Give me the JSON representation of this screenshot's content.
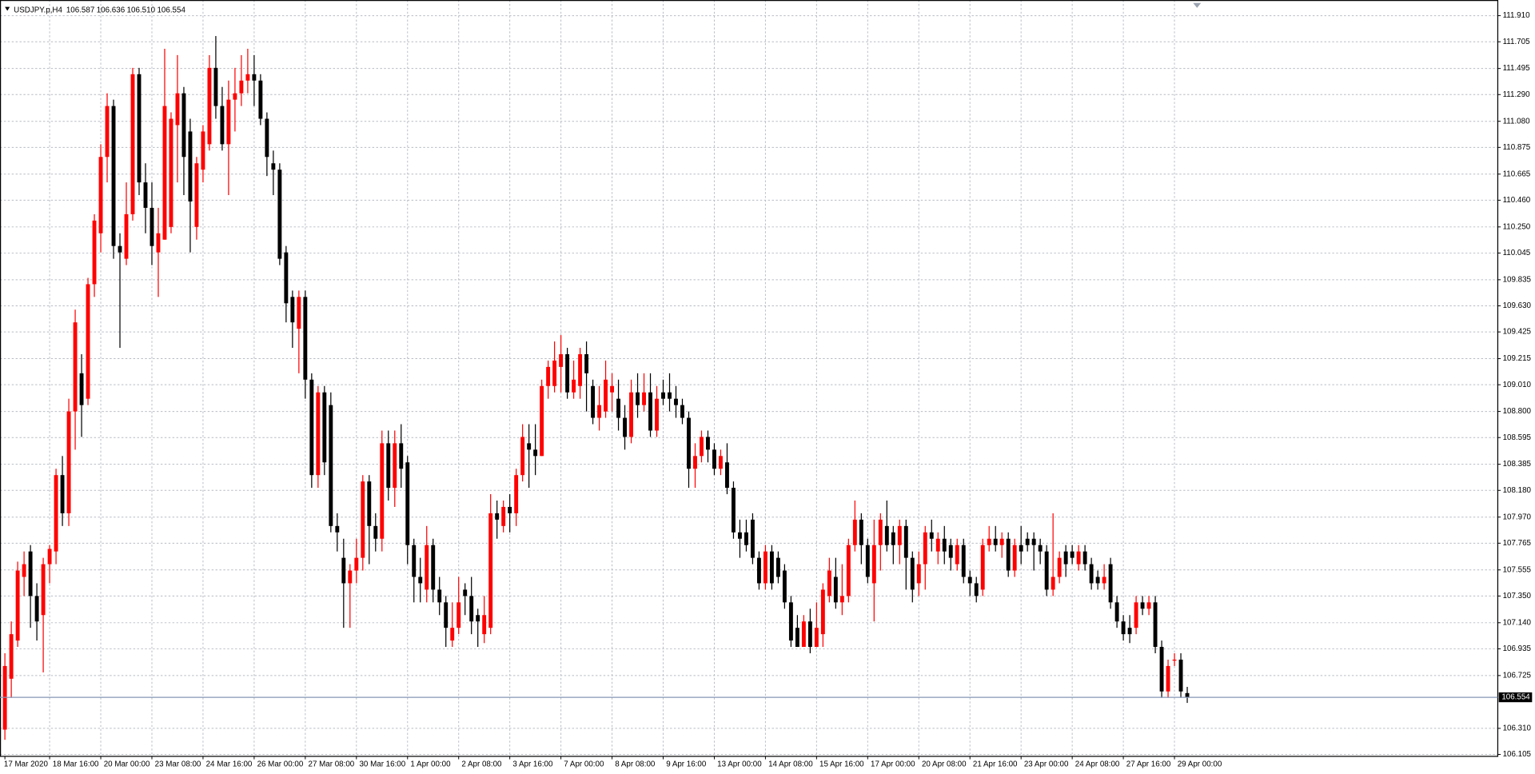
{
  "chart_data": {
    "type": "candlestick",
    "title": "USDJPY.p,H4",
    "ohlc_labels": [
      "106.587",
      "106.636",
      "106.510",
      "106.554"
    ],
    "up_color": "#ff0000",
    "down_color": "#000000",
    "grid": true,
    "last_price": {
      "value": 106.554,
      "label": "106.554"
    },
    "ylim": [
      106.09,
      112.033
    ],
    "yticks": [
      {
        "value": 111.91,
        "label": "111.910"
      },
      111.705,
      111.495,
      {
        "value": 111.29,
        "label": "111.290"
      },
      {
        "value": 111.08,
        "label": "111.080"
      },
      110.875,
      110.665,
      {
        "value": 110.46,
        "label": "110.460"
      },
      {
        "value": 110.25,
        "label": "110.250"
      },
      110.045,
      109.835,
      {
        "value": 109.63,
        "label": "109.630"
      },
      109.425,
      109.215,
      {
        "value": 109.01,
        "label": "109.010"
      },
      {
        "value": 108.8,
        "label": "108.800"
      },
      108.595,
      108.385,
      {
        "value": 108.18,
        "label": "108.180"
      },
      {
        "value": 107.97,
        "label": "107.970"
      },
      107.765,
      107.555,
      {
        "value": 107.35,
        "label": "107.350"
      },
      {
        "value": 107.14,
        "label": "107.140"
      },
      106.935,
      106.725,
      {
        "value": 106.31,
        "label": "106.310"
      },
      106.105
    ],
    "categories": [
      "17 Mar 2020",
      null,
      null,
      null,
      null,
      null,
      null,
      "18 Mar 16:00",
      null,
      null,
      null,
      null,
      null,
      null,
      null,
      "20 Mar 00:00",
      null,
      null,
      null,
      null,
      null,
      null,
      null,
      "23 Mar 08:00",
      null,
      null,
      null,
      null,
      null,
      null,
      null,
      "24 Mar 16:00",
      null,
      null,
      null,
      null,
      null,
      null,
      null,
      "26 Mar 00:00",
      null,
      null,
      null,
      null,
      null,
      null,
      null,
      "27 Mar 08:00",
      null,
      null,
      null,
      null,
      null,
      null,
      null,
      "30 Mar 16:00",
      null,
      null,
      null,
      null,
      null,
      null,
      null,
      "1 Apr 00:00",
      null,
      null,
      null,
      null,
      null,
      null,
      null,
      "2 Apr 08:00",
      null,
      null,
      null,
      null,
      null,
      null,
      null,
      "3 Apr 16:00",
      null,
      null,
      null,
      null,
      null,
      null,
      null,
      "7 Apr 00:00",
      null,
      null,
      null,
      null,
      null,
      null,
      null,
      "8 Apr 08:00",
      null,
      null,
      null,
      null,
      null,
      null,
      null,
      "9 Apr 16:00",
      null,
      null,
      null,
      null,
      null,
      null,
      null,
      "13 Apr 00:00",
      null,
      null,
      null,
      null,
      null,
      null,
      null,
      "14 Apr 08:00",
      null,
      null,
      null,
      null,
      null,
      null,
      null,
      "15 Apr 16:00",
      null,
      null,
      null,
      null,
      null,
      null,
      null,
      "17 Apr 00:00",
      null,
      null,
      null,
      null,
      null,
      null,
      null,
      "20 Apr 08:00",
      null,
      null,
      null,
      null,
      null,
      null,
      null,
      "21 Apr 16:00",
      null,
      null,
      null,
      null,
      null,
      null,
      null,
      "23 Apr 00:00",
      null,
      null,
      null,
      null,
      null,
      null,
      null,
      "24 Apr 08:00",
      null,
      null,
      null,
      null,
      null,
      null,
      null,
      "27 Apr 16:00",
      null,
      null,
      null,
      null,
      null,
      null,
      null,
      "29 Apr 00:00",
      null,
      null
    ],
    "ohlc": [
      [
        106.3,
        106.9,
        106.22,
        106.8
      ],
      [
        106.7,
        107.15,
        106.55,
        107.05
      ],
      [
        107.0,
        107.62,
        106.95,
        107.55
      ],
      [
        107.5,
        107.7,
        107.35,
        107.6
      ],
      [
        107.7,
        107.75,
        107.1,
        107.35
      ],
      [
        107.35,
        107.45,
        107.0,
        107.15
      ],
      [
        107.2,
        107.65,
        106.75,
        107.6
      ],
      [
        107.6,
        107.75,
        107.45,
        107.72
      ],
      [
        107.7,
        108.35,
        107.6,
        108.3
      ],
      [
        108.3,
        108.45,
        107.9,
        108.0
      ],
      [
        108.0,
        108.9,
        107.9,
        108.8
      ],
      [
        108.8,
        109.6,
        108.5,
        109.5
      ],
      [
        109.1,
        109.25,
        108.6,
        108.85
      ],
      [
        108.9,
        109.85,
        108.85,
        109.8
      ],
      [
        109.8,
        110.35,
        109.7,
        110.3
      ],
      [
        110.2,
        110.9,
        110.05,
        110.8
      ],
      [
        110.8,
        111.3,
        110.6,
        111.2
      ],
      [
        111.2,
        111.25,
        110.0,
        110.1
      ],
      [
        110.1,
        110.2,
        109.3,
        110.05
      ],
      [
        110.0,
        110.6,
        109.95,
        110.35
      ],
      [
        110.35,
        111.5,
        110.3,
        111.45
      ],
      [
        111.45,
        111.5,
        110.5,
        110.6
      ],
      [
        110.6,
        110.75,
        110.2,
        110.4
      ],
      [
        110.4,
        110.6,
        109.95,
        110.1
      ],
      [
        110.05,
        110.4,
        109.7,
        110.2
      ],
      [
        110.15,
        111.65,
        110.15,
        111.2
      ],
      [
        110.25,
        111.15,
        110.2,
        111.1
      ],
      [
        111.05,
        111.6,
        110.6,
        111.3
      ],
      [
        111.3,
        111.35,
        110.5,
        110.8
      ],
      [
        111.0,
        111.1,
        110.05,
        110.45
      ],
      [
        110.25,
        110.8,
        110.15,
        110.75
      ],
      [
        110.7,
        111.05,
        110.6,
        111.0
      ],
      [
        110.9,
        111.6,
        110.85,
        111.5
      ],
      [
        111.5,
        111.75,
        111.1,
        111.2
      ],
      [
        111.2,
        111.35,
        110.85,
        110.9
      ],
      [
        110.9,
        111.4,
        110.5,
        111.25
      ],
      [
        111.25,
        111.5,
        111.0,
        111.3
      ],
      [
        111.3,
        111.6,
        111.2,
        111.4
      ],
      [
        111.4,
        111.65,
        111.3,
        111.45
      ],
      [
        111.45,
        111.6,
        111.2,
        111.4
      ],
      [
        111.4,
        111.45,
        111.05,
        111.1
      ],
      [
        111.1,
        111.15,
        110.65,
        110.8
      ],
      [
        110.75,
        110.85,
        110.5,
        110.7
      ],
      [
        110.7,
        110.75,
        109.95,
        110.0
      ],
      [
        110.05,
        110.1,
        109.5,
        109.65
      ],
      [
        109.7,
        109.75,
        109.3,
        109.5
      ],
      [
        109.45,
        109.75,
        109.1,
        109.7
      ],
      [
        109.7,
        109.75,
        108.9,
        109.05
      ],
      [
        109.05,
        109.1,
        108.2,
        108.3
      ],
      [
        108.3,
        109.0,
        108.2,
        108.95
      ],
      [
        108.95,
        109.0,
        108.3,
        108.4
      ],
      [
        108.85,
        108.95,
        107.85,
        107.9
      ],
      [
        107.9,
        108.0,
        107.7,
        107.85
      ],
      [
        107.65,
        107.8,
        107.1,
        107.45
      ],
      [
        107.45,
        107.6,
        107.1,
        107.55
      ],
      [
        107.55,
        107.8,
        107.45,
        107.65
      ],
      [
        107.65,
        108.3,
        107.55,
        108.25
      ],
      [
        108.25,
        108.3,
        107.6,
        107.9
      ],
      [
        107.9,
        108.0,
        107.7,
        107.8
      ],
      [
        107.8,
        108.65,
        107.7,
        108.55
      ],
      [
        108.55,
        108.65,
        108.1,
        108.2
      ],
      [
        108.2,
        108.65,
        108.05,
        108.55
      ],
      [
        108.55,
        108.7,
        108.2,
        108.35
      ],
      [
        108.4,
        108.45,
        107.6,
        107.75
      ],
      [
        107.75,
        107.8,
        107.3,
        107.5
      ],
      [
        107.5,
        107.65,
        107.3,
        107.45
      ],
      [
        107.4,
        107.9,
        107.3,
        107.75
      ],
      [
        107.75,
        107.8,
        107.3,
        107.4
      ],
      [
        107.4,
        107.5,
        107.2,
        107.3
      ],
      [
        107.3,
        107.35,
        106.95,
        107.1
      ],
      [
        107.0,
        107.3,
        106.95,
        107.1
      ],
      [
        107.1,
        107.5,
        107.05,
        107.3
      ],
      [
        107.4,
        107.45,
        107.2,
        107.35
      ],
      [
        107.35,
        107.5,
        107.05,
        107.15
      ],
      [
        107.2,
        107.25,
        106.95,
        107.15
      ],
      [
        107.05,
        107.35,
        106.98,
        107.2
      ],
      [
        107.1,
        108.15,
        107.05,
        108.0
      ],
      [
        108.0,
        108.1,
        107.8,
        107.95
      ],
      [
        107.9,
        108.1,
        107.85,
        108.05
      ],
      [
        108.05,
        108.15,
        107.85,
        108.0
      ],
      [
        108.0,
        108.35,
        107.9,
        108.3
      ],
      [
        108.3,
        108.7,
        108.25,
        108.6
      ],
      [
        108.55,
        108.7,
        108.2,
        108.5
      ],
      [
        108.5,
        108.7,
        108.3,
        108.45
      ],
      [
        108.45,
        109.05,
        108.45,
        109.0
      ],
      [
        109.0,
        109.2,
        108.9,
        109.15
      ],
      [
        109.0,
        109.35,
        108.95,
        109.2
      ],
      [
        109.15,
        109.4,
        108.95,
        109.25
      ],
      [
        109.25,
        109.3,
        108.9,
        108.95
      ],
      [
        108.95,
        109.2,
        108.9,
        109.05
      ],
      [
        109.0,
        109.3,
        108.9,
        109.25
      ],
      [
        109.25,
        109.35,
        108.8,
        109.1
      ],
      [
        109.0,
        109.05,
        108.7,
        108.75
      ],
      [
        108.75,
        109.0,
        108.65,
        108.85
      ],
      [
        108.8,
        109.2,
        108.75,
        109.05
      ],
      [
        108.95,
        109.1,
        108.8,
        109.0
      ],
      [
        108.9,
        109.05,
        108.65,
        108.75
      ],
      [
        108.75,
        108.85,
        108.5,
        108.6
      ],
      [
        108.6,
        109.05,
        108.55,
        108.95
      ],
      [
        108.95,
        109.1,
        108.75,
        108.85
      ],
      [
        108.85,
        109.1,
        108.8,
        108.95
      ],
      [
        108.95,
        109.1,
        108.6,
        108.65
      ],
      [
        108.65,
        109.0,
        108.6,
        108.9
      ],
      [
        108.95,
        109.05,
        108.85,
        108.9
      ],
      [
        108.95,
        109.1,
        108.8,
        108.9
      ],
      [
        108.9,
        109.0,
        108.75,
        108.85
      ],
      [
        108.85,
        108.9,
        108.7,
        108.75
      ],
      [
        108.75,
        108.8,
        108.2,
        108.35
      ],
      [
        108.35,
        108.55,
        108.2,
        108.45
      ],
      [
        108.45,
        108.65,
        108.4,
        108.6
      ],
      [
        108.6,
        108.65,
        108.4,
        108.5
      ],
      [
        108.5,
        108.55,
        108.3,
        108.35
      ],
      [
        108.35,
        108.5,
        108.3,
        108.45
      ],
      [
        108.4,
        108.55,
        108.15,
        108.2
      ],
      [
        108.2,
        108.25,
        107.8,
        107.85
      ],
      [
        107.85,
        107.95,
        107.65,
        107.8
      ],
      [
        107.85,
        107.95,
        107.7,
        107.75
      ],
      [
        107.95,
        108.0,
        107.6,
        107.65
      ],
      [
        107.65,
        107.7,
        107.4,
        107.45
      ],
      [
        107.45,
        107.75,
        107.4,
        107.7
      ],
      [
        107.7,
        107.75,
        107.4,
        107.45
      ],
      [
        107.65,
        107.7,
        107.45,
        107.5
      ],
      [
        107.55,
        107.6,
        107.25,
        107.3
      ],
      [
        107.3,
        107.35,
        106.95,
        107.0
      ],
      [
        107.1,
        107.2,
        106.95,
        106.95
      ],
      [
        106.95,
        107.2,
        106.95,
        107.15
      ],
      [
        107.15,
        107.25,
        106.9,
        106.95
      ],
      [
        106.95,
        107.3,
        106.95,
        107.1
      ],
      [
        107.05,
        107.45,
        106.95,
        107.4
      ],
      [
        107.35,
        107.65,
        107.3,
        107.55
      ],
      [
        107.5,
        107.65,
        107.25,
        107.3
      ],
      [
        107.3,
        107.6,
        107.2,
        107.35
      ],
      [
        107.35,
        107.8,
        107.3,
        107.75
      ],
      [
        107.75,
        108.1,
        107.7,
        107.95
      ],
      [
        107.95,
        108.0,
        107.6,
        107.75
      ],
      [
        107.75,
        107.8,
        107.45,
        107.5
      ],
      [
        107.45,
        107.95,
        107.15,
        107.75
      ],
      [
        107.75,
        108.0,
        107.55,
        107.95
      ],
      [
        107.9,
        108.1,
        107.7,
        107.75
      ],
      [
        107.85,
        107.9,
        107.6,
        107.75
      ],
      [
        107.75,
        107.95,
        107.6,
        107.9
      ],
      [
        107.9,
        107.95,
        107.4,
        107.65
      ],
      [
        107.65,
        107.7,
        107.3,
        107.4
      ],
      [
        107.45,
        107.7,
        107.35,
        107.6
      ],
      [
        107.6,
        107.9,
        107.4,
        107.85
      ],
      [
        107.85,
        107.95,
        107.7,
        107.8
      ],
      [
        107.7,
        107.85,
        107.6,
        107.8
      ],
      [
        107.8,
        107.9,
        107.6,
        107.7
      ],
      [
        107.75,
        107.8,
        107.55,
        107.65
      ],
      [
        107.6,
        107.8,
        107.55,
        107.75
      ],
      [
        107.75,
        107.8,
        107.45,
        107.5
      ],
      [
        107.5,
        107.55,
        107.35,
        107.45
      ],
      [
        107.45,
        107.5,
        107.3,
        107.35
      ],
      [
        107.4,
        107.8,
        107.35,
        107.75
      ],
      [
        107.75,
        107.9,
        107.7,
        107.8
      ],
      [
        107.8,
        107.9,
        107.7,
        107.75
      ],
      [
        107.75,
        107.85,
        107.65,
        107.8
      ],
      [
        107.8,
        107.85,
        107.5,
        107.55
      ],
      [
        107.55,
        107.8,
        107.5,
        107.75
      ],
      [
        107.75,
        107.9,
        107.6,
        107.7
      ],
      [
        107.8,
        107.85,
        107.7,
        107.75
      ],
      [
        107.8,
        107.85,
        107.55,
        107.75
      ],
      [
        107.75,
        107.8,
        107.6,
        107.7
      ],
      [
        107.7,
        107.75,
        107.35,
        107.4
      ],
      [
        107.4,
        108.0,
        107.35,
        107.5
      ],
      [
        107.5,
        107.7,
        107.45,
        107.65
      ],
      [
        107.7,
        107.75,
        107.5,
        107.6
      ],
      [
        107.7,
        107.75,
        107.6,
        107.65
      ],
      [
        107.6,
        107.75,
        107.55,
        107.7
      ],
      [
        107.7,
        107.75,
        107.55,
        107.6
      ],
      [
        107.6,
        107.65,
        107.4,
        107.45
      ],
      [
        107.5,
        107.55,
        107.4,
        107.45
      ],
      [
        107.45,
        107.6,
        107.4,
        107.5
      ],
      [
        107.6,
        107.65,
        107.25,
        107.3
      ],
      [
        107.3,
        107.35,
        107.1,
        107.15
      ],
      [
        107.15,
        107.2,
        107.0,
        107.05
      ],
      [
        107.1,
        107.2,
        106.98,
        107.05
      ],
      [
        107.1,
        107.35,
        107.05,
        107.3
      ],
      [
        107.3,
        107.35,
        107.2,
        107.25
      ],
      [
        107.25,
        107.35,
        107.2,
        107.3
      ],
      [
        107.3,
        107.35,
        106.9,
        106.95
      ],
      [
        106.95,
        107.0,
        106.55,
        106.6
      ],
      [
        106.6,
        106.85,
        106.55,
        106.8
      ],
      [
        106.85,
        106.9,
        106.8,
        106.85
      ],
      [
        106.85,
        106.9,
        106.55,
        106.6
      ],
      [
        106.587,
        106.636,
        106.51,
        106.554
      ]
    ]
  }
}
